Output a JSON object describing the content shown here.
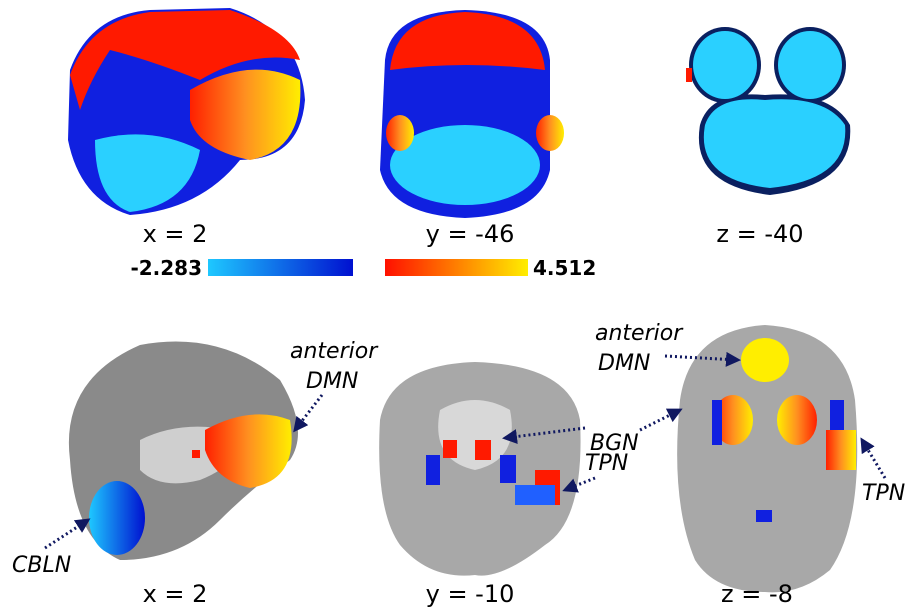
{
  "top_row": {
    "slices": [
      {
        "label": "x = 2"
      },
      {
        "label": "y = -46"
      },
      {
        "label": "z = -40"
      }
    ]
  },
  "colorbar": {
    "min_label": "-2.283",
    "max_label": "4.512"
  },
  "bottom_row": {
    "slices": [
      {
        "label": "x = 2",
        "annotations": [
          {
            "lines": [
              "anterior",
              "DMN"
            ]
          },
          {
            "lines": [
              "CBLN"
            ]
          }
        ]
      },
      {
        "label": "y = -10",
        "annotations": [
          {
            "lines": [
              "BGN"
            ]
          },
          {
            "lines": [
              "TPN"
            ]
          }
        ]
      },
      {
        "label": "z = -8",
        "annotations": [
          {
            "lines": [
              "anterior",
              "DMN"
            ]
          },
          {
            "lines": [
              "TPN"
            ]
          }
        ]
      }
    ]
  }
}
